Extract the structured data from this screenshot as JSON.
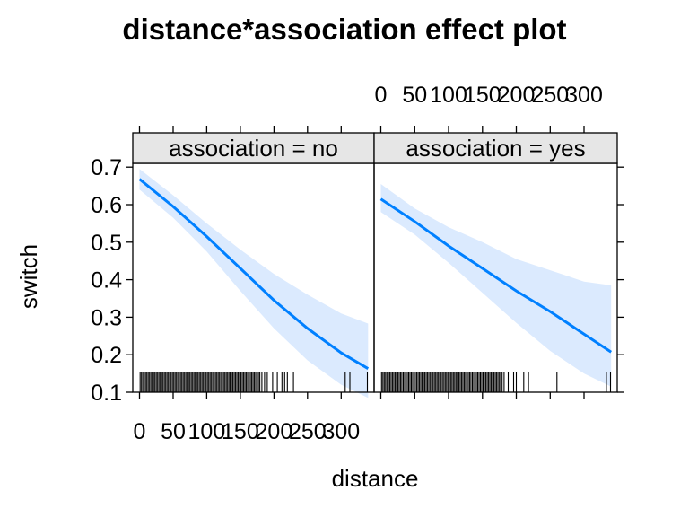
{
  "colors": {
    "line": "#0080ff",
    "band": "#dbeafe",
    "strip_bg": "#e6e6e6"
  },
  "chart_data": {
    "type": "line",
    "title": "distance*association effect plot",
    "xlabel": "distance",
    "ylabel": "switch",
    "xlim": [
      -10,
      349
    ],
    "ylim": [
      0.1,
      0.71
    ],
    "x_ticks": [
      0,
      50,
      100,
      150,
      200,
      250,
      300
    ],
    "x_tick_labels": [
      "0",
      "50",
      "100",
      "150",
      "200",
      "250",
      "300"
    ],
    "y_ticks": [
      0.1,
      0.2,
      0.3,
      0.4,
      0.5,
      0.6,
      0.7
    ],
    "y_tick_labels": [
      "0.1",
      "0.2",
      "0.3",
      "0.4",
      "0.5",
      "0.6",
      "0.7"
    ],
    "grid": false,
    "legend": "none",
    "panels": [
      {
        "strip_label": "association = no",
        "x": [
          0,
          50,
          100,
          150,
          200,
          250,
          300,
          340
        ],
        "fit": [
          0.668,
          0.595,
          0.515,
          0.43,
          0.345,
          0.27,
          0.205,
          0.163
        ],
        "lower": [
          0.64,
          0.565,
          0.475,
          0.37,
          0.27,
          0.185,
          0.12,
          0.085
        ],
        "upper": [
          0.695,
          0.625,
          0.55,
          0.48,
          0.415,
          0.36,
          0.31,
          0.283
        ],
        "rug": [
          1,
          3,
          5,
          7,
          9,
          11,
          13,
          15,
          17,
          19,
          21,
          23,
          25,
          27,
          29,
          31,
          33,
          35,
          37,
          39,
          41,
          43,
          45,
          47,
          49,
          51,
          53,
          55,
          57,
          59,
          61,
          63,
          65,
          67,
          69,
          71,
          73,
          75,
          77,
          79,
          81,
          83,
          85,
          87,
          89,
          91,
          93,
          95,
          97,
          99,
          101,
          103,
          105,
          107,
          109,
          111,
          113,
          115,
          117,
          119,
          121,
          123,
          125,
          127,
          129,
          131,
          133,
          135,
          137,
          139,
          141,
          143,
          145,
          147,
          149,
          151,
          153,
          155,
          157,
          159,
          161,
          163,
          165,
          167,
          169,
          171,
          173,
          175,
          177,
          179,
          182,
          186,
          190,
          198,
          205,
          212,
          216,
          220,
          229,
          306,
          313,
          339
        ]
      },
      {
        "strip_label": "association = yes",
        "x": [
          0,
          50,
          100,
          150,
          200,
          250,
          300,
          340
        ],
        "fit": [
          0.615,
          0.555,
          0.49,
          0.43,
          0.37,
          0.315,
          0.255,
          0.207
        ],
        "lower": [
          0.58,
          0.52,
          0.445,
          0.365,
          0.285,
          0.21,
          0.15,
          0.115
        ],
        "upper": [
          0.655,
          0.59,
          0.54,
          0.5,
          0.455,
          0.425,
          0.395,
          0.385
        ],
        "rug": [
          1,
          3,
          5,
          7,
          9,
          11,
          13,
          15,
          17,
          19,
          21,
          23,
          25,
          27,
          29,
          31,
          33,
          35,
          37,
          39,
          41,
          43,
          45,
          47,
          49,
          51,
          53,
          55,
          57,
          59,
          61,
          63,
          65,
          67,
          69,
          71,
          73,
          75,
          77,
          79,
          81,
          83,
          85,
          87,
          89,
          91,
          93,
          95,
          97,
          99,
          101,
          103,
          105,
          107,
          109,
          111,
          113,
          115,
          117,
          119,
          121,
          123,
          125,
          127,
          129,
          131,
          133,
          135,
          137,
          139,
          141,
          143,
          145,
          147,
          149,
          151,
          153,
          155,
          157,
          159,
          161,
          163,
          165,
          167,
          169,
          171,
          173,
          175,
          177,
          179,
          182,
          188,
          196,
          200,
          211,
          218,
          260,
          333,
          339
        ]
      }
    ]
  }
}
